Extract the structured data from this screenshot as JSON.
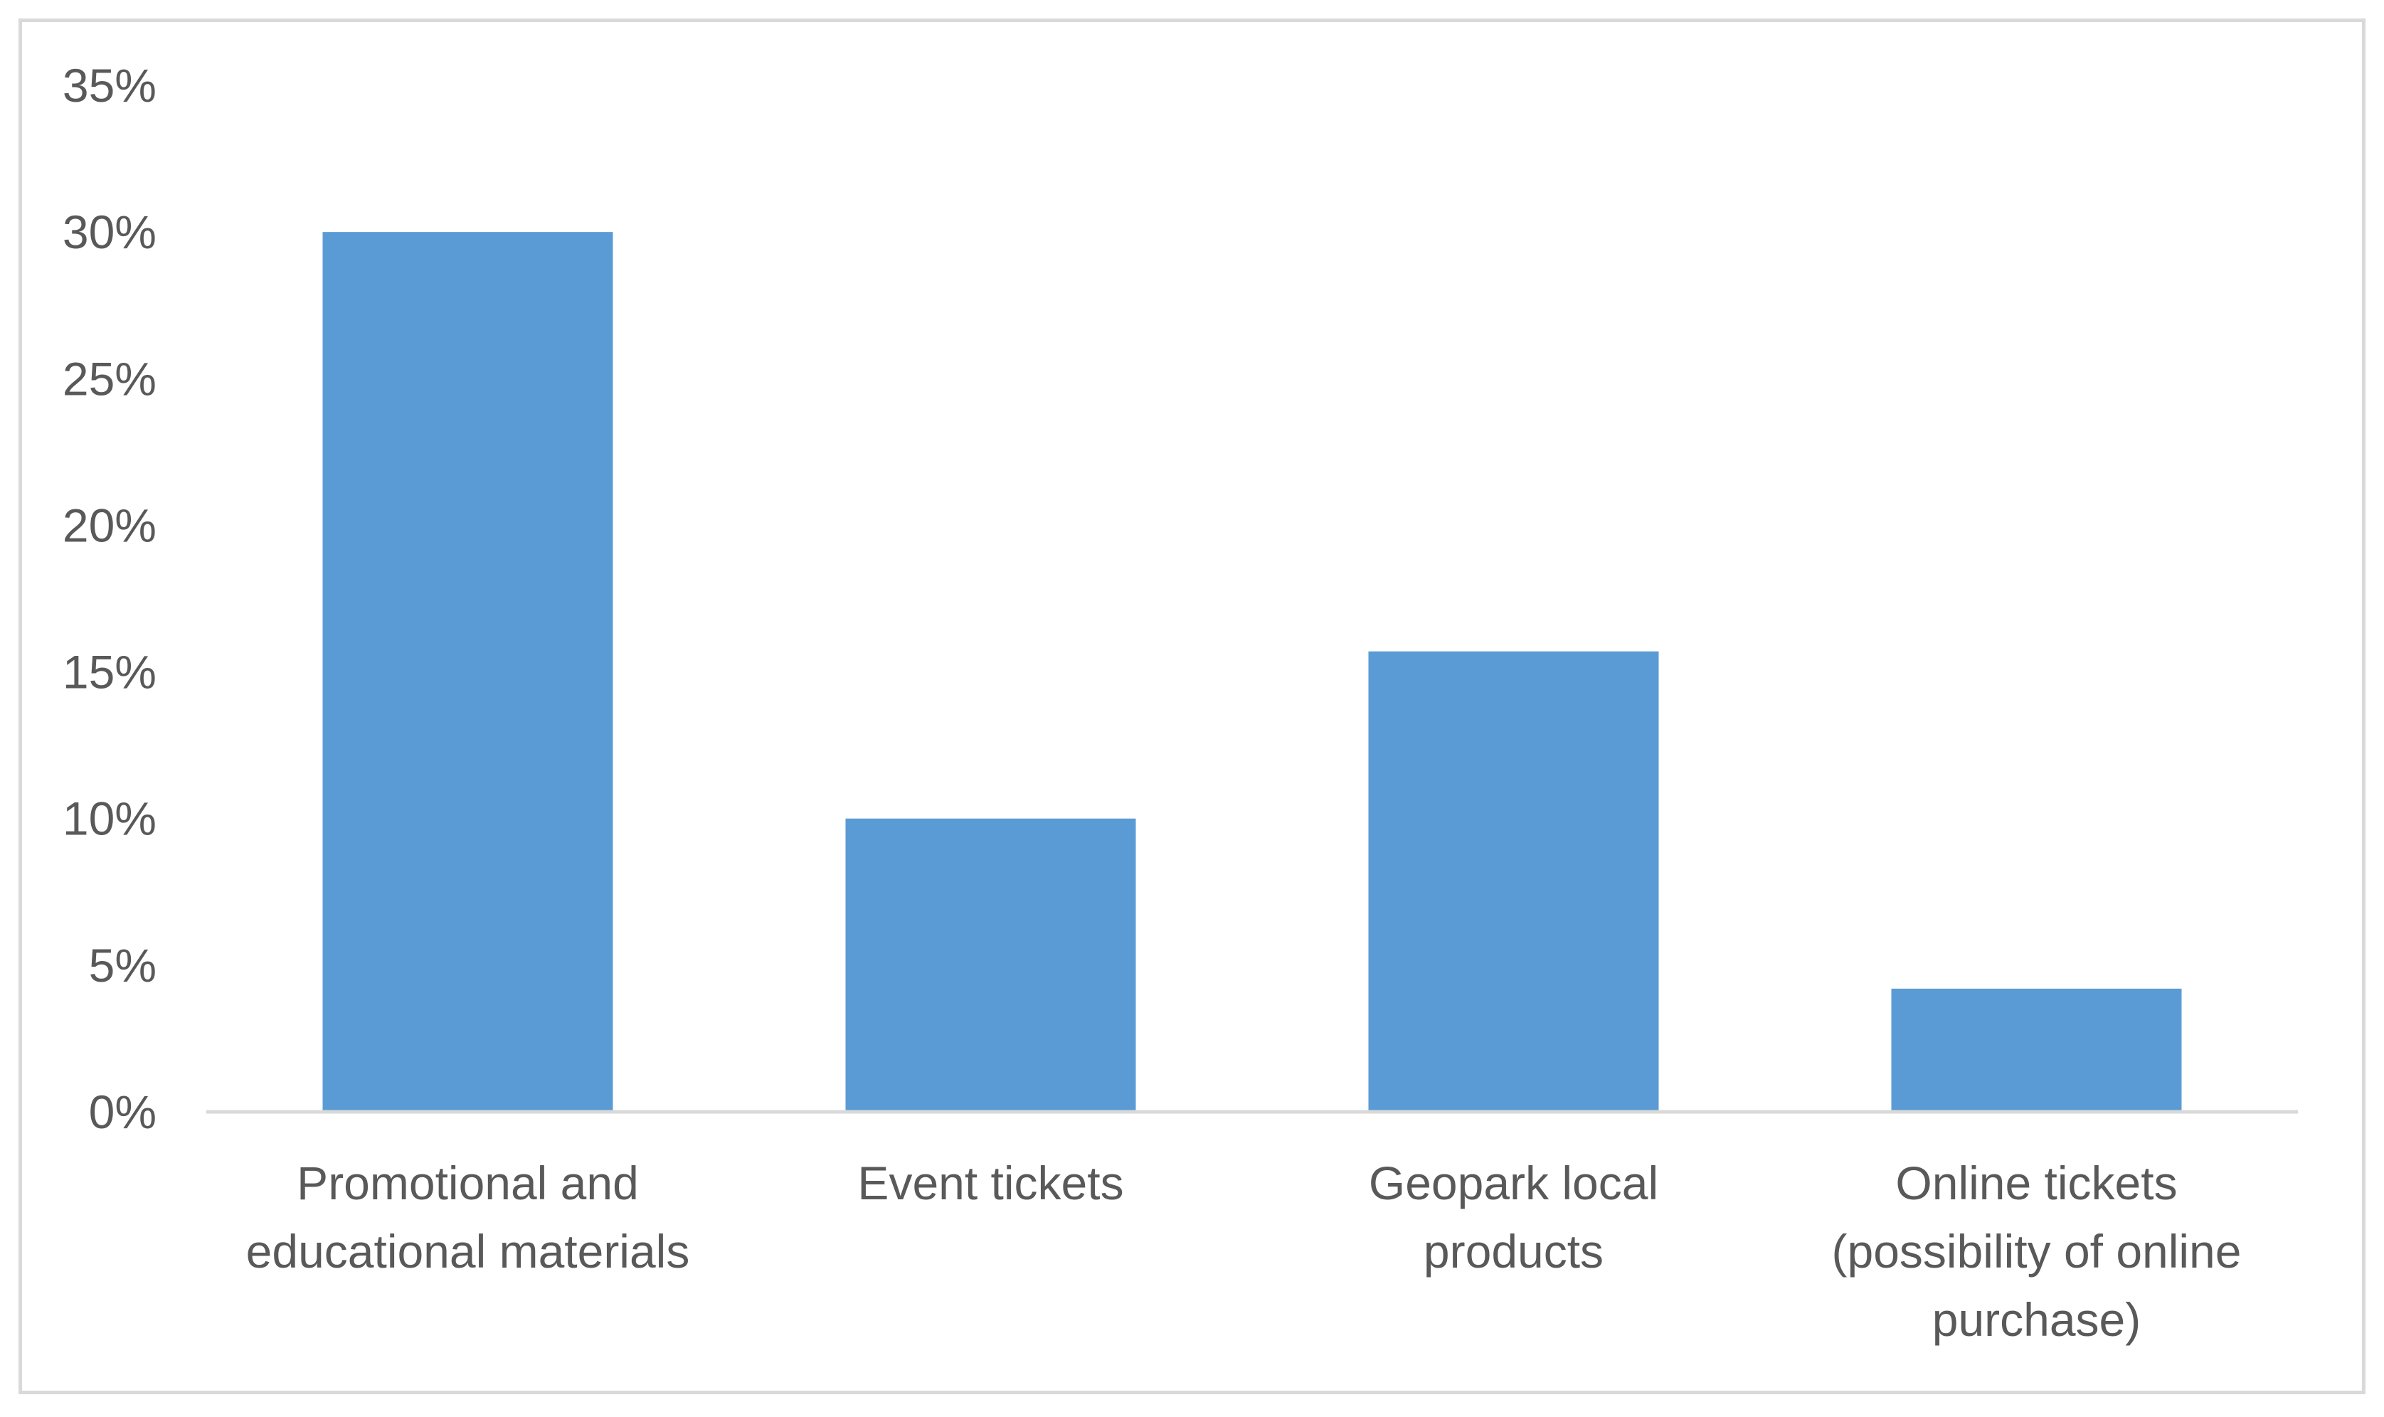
{
  "chart_data": {
    "type": "bar",
    "title": "",
    "xlabel": "",
    "ylabel": "",
    "categories": [
      [
        "Promotional and",
        "educational materials"
      ],
      [
        "Event tickets"
      ],
      [
        "Geopark local",
        "products"
      ],
      [
        "Online tickets",
        "(possibility of online",
        "purchase)"
      ]
    ],
    "values": [
      30,
      10,
      15.7,
      4.2
    ],
    "value_format": "percent",
    "ylim": [
      0,
      35
    ],
    "yticks": [
      "0%",
      "5%",
      "10%",
      "15%",
      "20%",
      "25%",
      "30%",
      "35%"
    ],
    "bar_color": "#5b9bd5",
    "axis_color": "#d9d9d9",
    "text_color": "#595959",
    "grid": false,
    "legend": false
  }
}
